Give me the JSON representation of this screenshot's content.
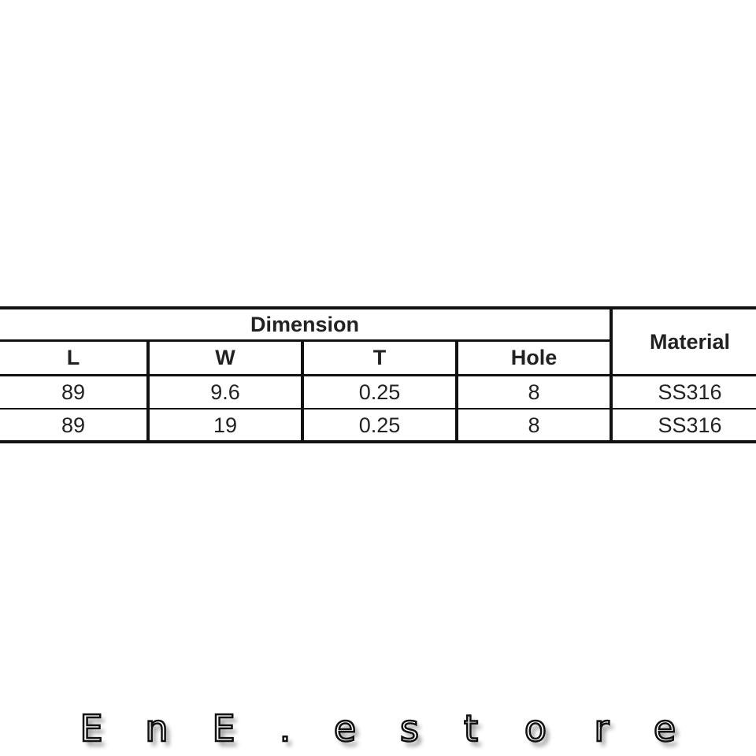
{
  "table": {
    "group_header": "Dimension",
    "material_header": "Material",
    "columns": [
      "L",
      "W",
      "T",
      "Hole"
    ],
    "rows": [
      {
        "L": "89",
        "W": "9.6",
        "T": "0.25",
        "Hole": "8",
        "Material": "SS316"
      },
      {
        "L": "89",
        "W": "19",
        "T": "0.25",
        "Hole": "8",
        "Material": "SS316"
      }
    ]
  },
  "watermark": {
    "letters": [
      "E",
      "n",
      "E",
      ".",
      "e",
      "s",
      "t",
      "o",
      "r",
      "e"
    ],
    "text": "EnE.estore"
  }
}
